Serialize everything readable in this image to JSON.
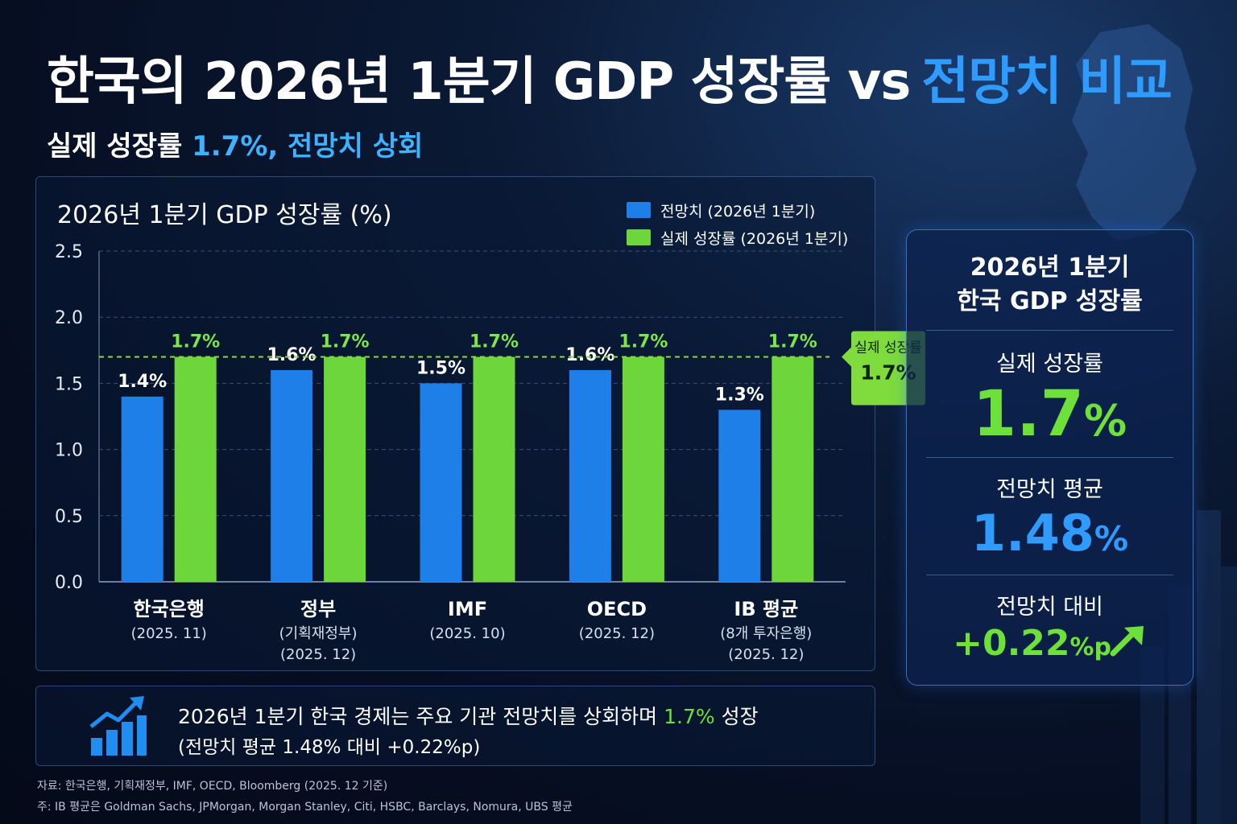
{
  "header": {
    "title_main": "한국의 2026년 1분기 GDP 성장률 vs",
    "title_accent": "전망치 비교",
    "subtitle_prefix": "실제 성장률",
    "subtitle_highlight": "1.7%, 전망치 상회"
  },
  "chart_data": {
    "type": "bar",
    "title": "2026년 1분기 GDP 성장률 (%)",
    "ylim": [
      0,
      2.5
    ],
    "yticks": [
      "0.0",
      "0.5",
      "1.0",
      "1.5",
      "2.0",
      "2.5"
    ],
    "categories": [
      {
        "name": "한국은행",
        "sub": [
          "(2025. 11)"
        ]
      },
      {
        "name": "정부",
        "sub": [
          "(기획재정부)",
          "(2025. 12)"
        ]
      },
      {
        "name": "IMF",
        "sub": [
          "(2025. 10)"
        ]
      },
      {
        "name": "OECD",
        "sub": [
          "(2025. 12)"
        ]
      },
      {
        "name": "IB 평균",
        "sub": [
          "(8개 투자은행)",
          "(2025. 12)"
        ]
      }
    ],
    "series": [
      {
        "name": "전망치 (2026년 1분기)",
        "color": "#1f7fe8",
        "values": [
          1.4,
          1.6,
          1.5,
          1.6,
          1.3
        ],
        "labels": [
          "1.4%",
          "1.6%",
          "1.5%",
          "1.6%",
          "1.3%"
        ]
      },
      {
        "name": "실제 성장률 (2026년 1분기)",
        "color": "#6cd63a",
        "values": [
          1.7,
          1.7,
          1.7,
          1.7,
          1.7
        ],
        "labels": [
          "1.7%",
          "1.7%",
          "1.7%",
          "1.7%",
          "1.7%"
        ]
      }
    ],
    "reference_line": {
      "value": 1.7,
      "label_top": "실제 성장률",
      "label_bottom": "1.7%"
    }
  },
  "kpi": {
    "head_line1": "2026년 1분기",
    "head_line2": "한국 GDP 성장률",
    "actual_label": "실제 성장률",
    "actual_value": "1.7",
    "actual_unit": "%",
    "forecast_label": "전망치 평균",
    "forecast_value": "1.48",
    "forecast_unit": "%",
    "diff_label": "전망치 대비",
    "diff_value": "+0.22",
    "diff_unit": "%p",
    "colors": {
      "green": "#6ee03a",
      "blue": "#2f9bff"
    }
  },
  "summary": {
    "line1_prefix": "2026년 1분기 한국 경제는 주요 기관 전망치를 상회하며",
    "line1_highlight": "1.7%",
    "line1_suffix": "성장",
    "line2": "(전망치 평균 1.48% 대비 +0.22%p)"
  },
  "footnotes": {
    "source": "자료: 한국은행, 기획재정부, IMF, OECD, Bloomberg (2025. 12 기준)",
    "note": "주: IB 평균은 Goldman Sachs, JPMorgan, Morgan Stanley, Citi, HSBC, Barclays, Nomura, UBS 평균"
  }
}
